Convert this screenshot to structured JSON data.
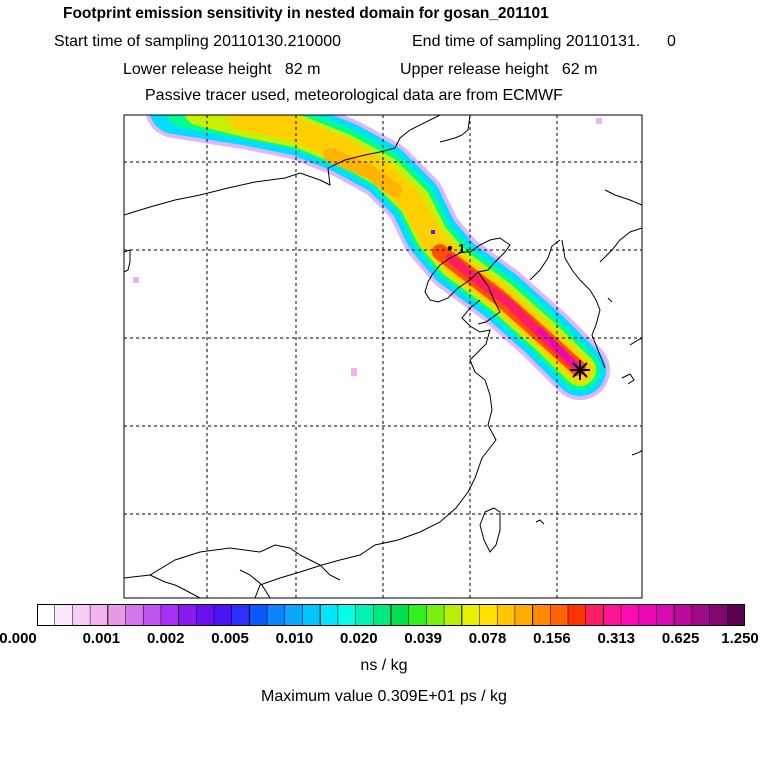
{
  "header": {
    "title": "Footprint emission sensitivity in nested domain for gosan_201101",
    "start_label": "Start time of sampling 20110130.210000",
    "end_label": "End time of sampling 20110131.      0",
    "lower_release": "Lower release height   82 m",
    "upper_release": "Upper release height   62 m",
    "tracer_note": "Passive tracer used, meteorological data are from ECMWF"
  },
  "map": {
    "release_marker_label": "1",
    "receptor": "gosan"
  },
  "colorbar": {
    "colors": [
      "#ffffff",
      "#fbe6fb",
      "#f6cdf6",
      "#f0b3f0",
      "#e89ae8",
      "#d477ec",
      "#c055f2",
      "#a630f5",
      "#8a18f0",
      "#6a10f0",
      "#4a14f5",
      "#2a30ff",
      "#0a58ff",
      "#0a84ff",
      "#0aa9ff",
      "#00c8ff",
      "#00e6ff",
      "#00ffe6",
      "#00f5b4",
      "#00ea82",
      "#00e050",
      "#30f020",
      "#78f010",
      "#b8f000",
      "#e8f000",
      "#ffe000",
      "#ffc600",
      "#ffac00",
      "#ff8a00",
      "#ff6200",
      "#ff3200",
      "#ff1e64",
      "#ff1496",
      "#ff0ab4",
      "#ee08b4",
      "#d80ab4",
      "#c008a0",
      "#a00888",
      "#800870",
      "#5a0050"
    ],
    "tick_labels": [
      "0.000",
      "0.001",
      "0.002",
      "0.005",
      "0.010",
      "0.020",
      "0.039",
      "0.078",
      "0.156",
      "0.313",
      "0.625",
      "1.250"
    ],
    "units": "ns / kg",
    "max_value": "Maximum value  0.309E+01 ps / kg"
  }
}
